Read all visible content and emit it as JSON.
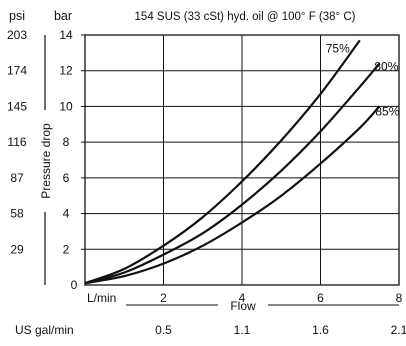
{
  "chart_data": {
    "type": "line",
    "title": "154 SUS (33 cSt) hyd. oil @ 100° F (38° C)",
    "left_unit": "psi",
    "right_unit": "bar",
    "ylabel": "Pressure drop",
    "xlabel": "Flow",
    "x_unit": "L/min",
    "x2_unit": "US gal/min",
    "xlim": [
      0,
      8
    ],
    "ylim": [
      0,
      14
    ],
    "x_ticks": [
      0,
      2,
      4,
      6,
      8
    ],
    "x_tick_labels": [
      "L/min",
      "2",
      "4",
      "6",
      "8"
    ],
    "x2_ticks": [
      2,
      4,
      6,
      8
    ],
    "x2_tick_labels": [
      "0.5",
      "1.1",
      "1.6",
      "2.1"
    ],
    "y_ticks": [
      0,
      2,
      4,
      6,
      8,
      10,
      12,
      14
    ],
    "y_tick_labels": [
      "0",
      "2",
      "4",
      "6",
      "8",
      "10",
      "12",
      "14"
    ],
    "psi_ticks": [
      2,
      4,
      6,
      8,
      10,
      12,
      14
    ],
    "psi_tick_labels": [
      "29",
      "58",
      "87",
      "116",
      "145",
      "174",
      "203"
    ],
    "grid": true,
    "series": [
      {
        "name": "75%",
        "x": [
          0,
          1,
          2,
          3,
          4,
          5,
          6,
          7
        ],
        "y": [
          0.1,
          0.9,
          2.2,
          3.8,
          5.8,
          8.1,
          10.7,
          13.7
        ]
      },
      {
        "name": "80%",
        "x": [
          0,
          1,
          2,
          3,
          4,
          5,
          6,
          7,
          7.5
        ],
        "y": [
          0.1,
          0.7,
          1.7,
          2.9,
          4.5,
          6.4,
          8.6,
          11.1,
          12.4
        ]
      },
      {
        "name": "85%",
        "x": [
          0,
          1,
          2,
          3,
          4,
          5,
          6,
          7,
          7.5
        ],
        "y": [
          0.1,
          0.5,
          1.2,
          2.2,
          3.5,
          5.0,
          6.8,
          8.8,
          10.0
        ]
      }
    ]
  }
}
